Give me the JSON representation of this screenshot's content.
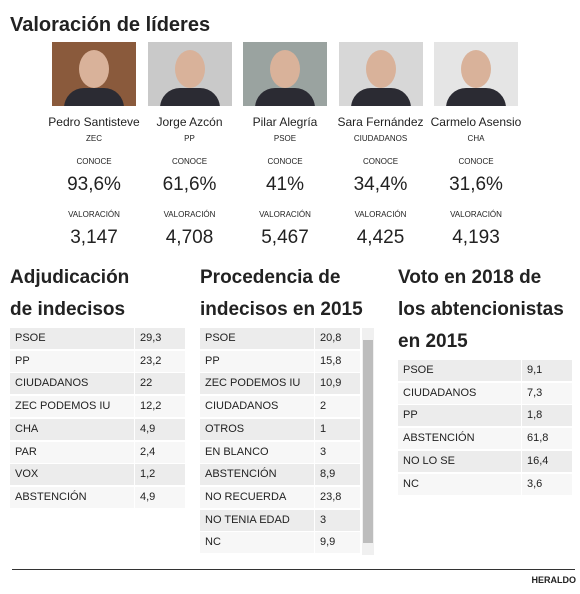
{
  "header": {
    "title": "Valoración de líderes"
  },
  "leaders": [
    {
      "name": "Pedro Santisteve",
      "party": "ZEC",
      "conoce_label": "CONOCE",
      "conoce": "93,6%",
      "valoracion_label": "VALORACIÓN",
      "valoracion": "3,147"
    },
    {
      "name": "Jorge Azcón",
      "party": "PP",
      "conoce_label": "CONOCE",
      "conoce": "61,6%",
      "valoracion_label": "VALORACIÓN",
      "valoracion": "4,708"
    },
    {
      "name": "Pilar Alegría",
      "party": "PSOE",
      "conoce_label": "CONOCE",
      "conoce": "41%",
      "valoracion_label": "VALORACIÓN",
      "valoracion": "5,467"
    },
    {
      "name": "Sara Fernández",
      "party": "CIUDADANOS",
      "conoce_label": "CONOCE",
      "conoce": "34,4%",
      "valoracion_label": "VALORACIÓN",
      "valoracion": "4,425"
    },
    {
      "name": "Carmelo Asensio",
      "party": "CHA",
      "conoce_label": "CONOCE",
      "conoce": "31,6%",
      "valoracion_label": "VALORACIÓN",
      "valoracion": "4,193"
    }
  ],
  "tables": [
    {
      "title": [
        "Adjudicación",
        "de indecisos"
      ],
      "rows": [
        [
          "PSOE",
          "29,3"
        ],
        [
          "PP",
          "23,2"
        ],
        [
          "CIUDADANOS",
          "22"
        ],
        [
          "ZEC PODEMOS IU",
          "12,2"
        ],
        [
          "CHA",
          "4,9"
        ],
        [
          "PAR",
          "2,4"
        ],
        [
          "VOX",
          "1,2"
        ],
        [
          "ABSTENCIÓN",
          "4,9"
        ]
      ]
    },
    {
      "title": [
        "Procedencia de",
        "indecisos en 2015"
      ],
      "rows": [
        [
          "PSOE",
          "20,8"
        ],
        [
          "PP",
          "15,8"
        ],
        [
          "ZEC PODEMOS IU",
          "10,9"
        ],
        [
          "CIUDADANOS",
          "2"
        ],
        [
          "OTROS",
          "1"
        ],
        [
          "EN BLANCO",
          "3"
        ],
        [
          "ABSTENCIÓN",
          "8,9"
        ],
        [
          "NO RECUERDA",
          "23,8"
        ],
        [
          "NO TENIA EDAD",
          "3"
        ],
        [
          "NC",
          "9,9"
        ]
      ]
    },
    {
      "title": [
        "Voto en 2018 de",
        "los abtencionistas",
        "en 2015"
      ],
      "rows": [
        [
          "PSOE",
          "9,1"
        ],
        [
          "CIUDADANOS",
          "7,3"
        ],
        [
          "PP",
          "1,8"
        ],
        [
          "ABSTENCIÓN",
          "61,8"
        ],
        [
          "NO LO SE",
          "16,4"
        ],
        [
          "NC",
          "3,6"
        ]
      ]
    }
  ],
  "footer": {
    "source": "HERALDO"
  }
}
